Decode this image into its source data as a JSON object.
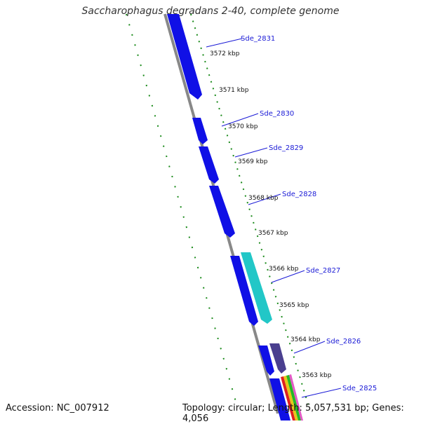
{
  "title": "Saccharophagus degradans 2-40, complete genome",
  "footer": {
    "accession": "Accession: NC_007912",
    "summary": "Topology: circular; Length: 5,057,531 bp; Genes: 4,056"
  },
  "colors": {
    "forward_gene": "#1010e6",
    "highlight_gene": "#22c7c7",
    "other_gene": "#4a3f8f",
    "backbone": "#888888",
    "tick_marks": "#1a8a1a",
    "label": "#1a1ad6"
  },
  "ruler_labels": [
    "3572 kbp",
    "3571 kbp",
    "3570 kbp",
    "3569 kbp",
    "3568 kbp",
    "3567 kbp",
    "3566 kbp",
    "3565 kbp",
    "3564 kbp",
    "3563 kbp"
  ],
  "gene_labels": [
    "Sde_2831",
    "Sde_2830",
    "Sde_2829",
    "Sde_2828",
    "Sde_2827",
    "Sde_2826",
    "Sde_2825"
  ]
}
